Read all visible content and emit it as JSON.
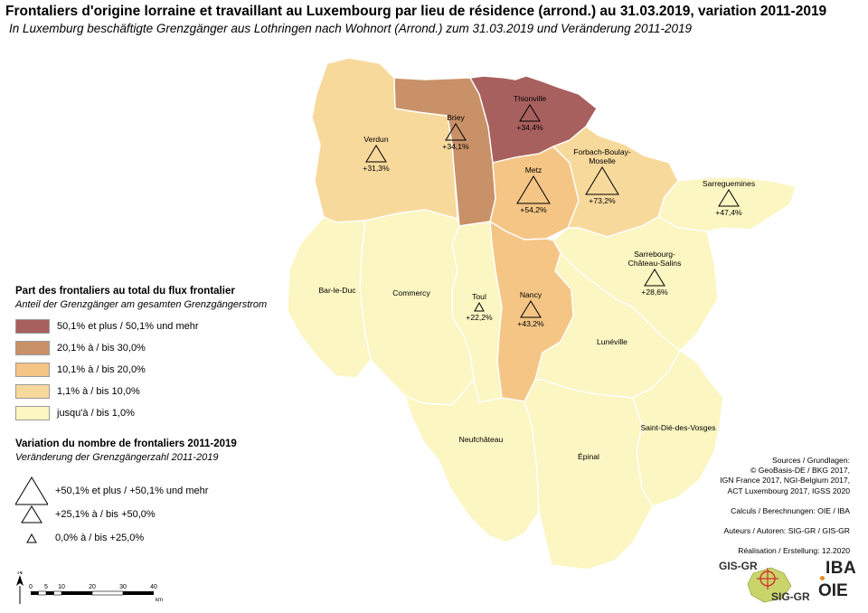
{
  "title": "Frontaliers d'origine lorraine et travaillant au Luxembourg par lieu de résidence (arrond.) au 31.03.2019, variation 2011-2019",
  "subtitle": "In Luxemburg beschäftigte Grenzgänger aus Lothringen nach Wohnort (Arrond.) zum 31.03.2019 und Veränderung 2011-2019",
  "colors": {
    "class5": "#a8605e",
    "class4": "#c99167",
    "class3": "#f4c585",
    "class2": "#f7d99c",
    "class1": "#fbf6c2",
    "border": "#ffffff"
  },
  "districts": [
    {
      "name": "Thionville",
      "class": "class5",
      "variation": "+34,4%",
      "growth_class": "medium"
    },
    {
      "name": "Briey",
      "class": "class4",
      "variation": "+34,1%",
      "growth_class": "medium"
    },
    {
      "name": "Verdun",
      "class": "class2",
      "variation": "+31,3%",
      "growth_class": "medium"
    },
    {
      "name": "Metz",
      "class": "class3",
      "variation": "+54,2%",
      "growth_class": "large"
    },
    {
      "name": "Forbach-Boulay-Moselle",
      "label_lines": [
        "Forbach-Boulay-",
        "Moselle"
      ],
      "class": "class2",
      "variation": "+73,2%",
      "growth_class": "large"
    },
    {
      "name": "Sarreguemines",
      "class": "class1",
      "variation": "+47,4%",
      "growth_class": "medium"
    },
    {
      "name": "Sarrebourg-Château-Salins",
      "label_lines": [
        "Sarrebourg-",
        "Château-Salins"
      ],
      "class": "class1",
      "variation": "+28,6%",
      "growth_class": "medium"
    },
    {
      "name": "Nancy",
      "class": "class3",
      "variation": "+43,2%",
      "growth_class": "medium"
    },
    {
      "name": "Toul",
      "class": "class1",
      "variation": "+22,2%",
      "growth_class": "small"
    },
    {
      "name": "Bar-le-Duc",
      "class": "class1"
    },
    {
      "name": "Commercy",
      "class": "class1"
    },
    {
      "name": "Lunéville",
      "class": "class1"
    },
    {
      "name": "Neufchâteau",
      "class": "class1"
    },
    {
      "name": "Épinal",
      "class": "class1"
    },
    {
      "name": "Saint-Dié-des-Vosges",
      "class": "class1"
    }
  ],
  "legend_share": {
    "heading": "Part des frontaliers au total du flux frontalier",
    "subheading": "Anteil der Grenzgänger am gesamten Grenzgängerstrom",
    "classes": [
      {
        "key": "class5",
        "label": "50,1% et plus / 50,1% und mehr"
      },
      {
        "key": "class4",
        "label": "20,1% à / bis 30,0%"
      },
      {
        "key": "class3",
        "label": "10,1% à / bis 20,0%"
      },
      {
        "key": "class2",
        "label": "1,1% à / bis 10,0%"
      },
      {
        "key": "class1",
        "label": "jusqu'à / bis 1,0%"
      }
    ]
  },
  "legend_variation": {
    "heading": "Variation du nombre de frontaliers 2011-2019",
    "subheading": "Veränderung der Grenzgängerzahl 2011-2019",
    "classes": [
      {
        "key": "large",
        "label": "+50,1% et plus / +50,1% und mehr"
      },
      {
        "key": "medium",
        "label": "+25,1% à / bis +50,0%"
      },
      {
        "key": "small",
        "label": "0,0% à / bis +25,0%"
      }
    ]
  },
  "sources": {
    "lines": [
      "Sources / Grundlagen:",
      "© GeoBasis-DE / BKG 2017,",
      "IGN France 2017, NGI-Belgium 2017,",
      "ACT Luxembourg 2017, IGSS 2020"
    ],
    "calculs": "Calculs / Berechnungen: OIE / IBA",
    "auteurs": "Auteurs / Autoren: SIG-GR / GIS-GR",
    "realisation": "Réalisation / Erstellung: 12.2020"
  },
  "scale": {
    "north": "N",
    "ticks": [
      "0",
      "5",
      "10",
      "20",
      "30",
      "40"
    ],
    "unit": "km"
  },
  "logos": {
    "gis": "GIS-GR",
    "sig": "SIG-GR",
    "iba": "IBA",
    "oie": "OIE"
  }
}
